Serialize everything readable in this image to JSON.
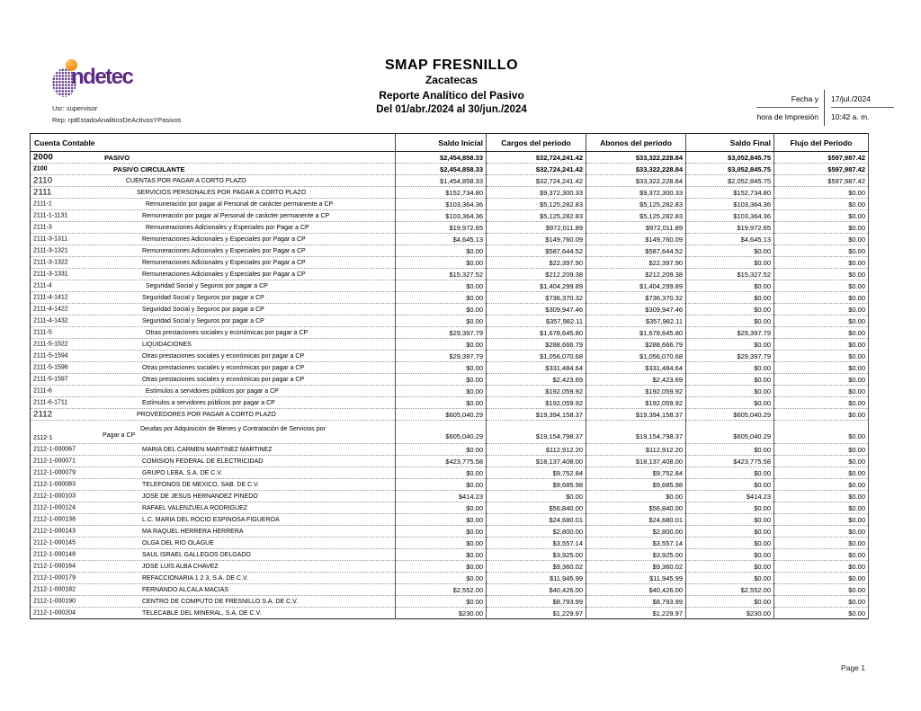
{
  "branding": {
    "logo_name": "indetec",
    "logo_text_visible": "ndetec",
    "purple": "#5B2C86",
    "orange": "#F59120"
  },
  "meta": {
    "usr_line": "Usr: supervisor",
    "rep_line": "Rep: rptEstadoAnaliticoDeActivosYPasivos"
  },
  "title": {
    "line1": "SMAP FRESNILLO",
    "line2": "Zacatecas",
    "line3": "Reporte Analítico del Pasivo",
    "line4": "Del 01/abr./2024 al 30/jun./2024"
  },
  "print_info": {
    "label_line1": "Fecha y",
    "label_line2": "hora de Impresión",
    "date": "17/jul./2024",
    "time": "10:42 a. m."
  },
  "table": {
    "columns": [
      "Cuenta Contable",
      "Saldo Inicial",
      "Cargos del periodo",
      "Abonos del periodo",
      "Saldo Final",
      "Flujo del Periodo"
    ],
    "rows": [
      {
        "code": "2000",
        "name": "PASIVO",
        "level": 1,
        "big": true,
        "bold": true,
        "values": [
          "$2,454,858.33",
          "$32,724,241.42",
          "$33,322,228.84",
          "$3,052,845.75",
          "$597,987.42"
        ]
      },
      {
        "code": "2100",
        "name": "PASIVO CIRCULANTE",
        "level": 2,
        "bold": true,
        "values": [
          "$2,454,858.33",
          "$32,724,241.42",
          "$33,322,228.84",
          "$3,052,845.75",
          "$597,987.42"
        ]
      },
      {
        "code": "2110",
        "name": "CUENTAS POR PAGAR A CORTO PLAZO",
        "level": 3,
        "big": true,
        "values": [
          "$1,454,858.33",
          "$32,724,241.42",
          "$33,322,228.84",
          "$2,052,845.75",
          "$597,987.42"
        ]
      },
      {
        "code": "2111",
        "name": "SERVICIOS PERSONALES POR PAGAR A CORTO PLAZO",
        "level": 4,
        "big": true,
        "values": [
          "$152,734.80",
          "$9,372,300.33",
          "$9,372,300.33",
          "$152,734.80",
          "$0.00"
        ]
      },
      {
        "code": "2111-1",
        "name": "Remuneración por pagar al Personal de carácter permanente a CP",
        "level": 5,
        "values": [
          "$103,364.36",
          "$5,125,282.83",
          "$5,125,282.83",
          "$103,364.36",
          "$0.00"
        ]
      },
      {
        "code": "2111-1-1131",
        "name": "Remuneración por pagar al Personal de carácter permanente a CP",
        "level": 6,
        "values": [
          "$103,364.36",
          "$5,125,282.83",
          "$5,125,282.83",
          "$103,364.36",
          "$0.00"
        ]
      },
      {
        "code": "2111-3",
        "name": "Remuneraciones Adicionales y Especiales por Pagar a CP",
        "level": 5,
        "values": [
          "$19,972.65",
          "$972,011.89",
          "$972,011.89",
          "$19,972.65",
          "$0.00"
        ]
      },
      {
        "code": "2111-3-1311",
        "name": "Remuneraciones Adicionales y Especiales por Pagar a CP",
        "level": 6,
        "values": [
          "$4,645.13",
          "$149,760.09",
          "$149,760.09",
          "$4,645.13",
          "$0.00"
        ]
      },
      {
        "code": "2111-3-1321",
        "name": "Remuneraciones Adicionales y Especiales por Pagar a CP",
        "level": 6,
        "values": [
          "$0.00",
          "$587,644.52",
          "$587,644.52",
          "$0.00",
          "$0.00"
        ]
      },
      {
        "code": "2111-3-1322",
        "name": "Remuneraciones Adicionales y Especiales por Pagar a CP",
        "level": 6,
        "values": [
          "$0.00",
          "$22,397.90",
          "$22,397.90",
          "$0.00",
          "$0.00"
        ]
      },
      {
        "code": "2111-3-1331",
        "name": "Remuneraciones Adicionales y Especiales por Pagar a CP",
        "level": 6,
        "values": [
          "$15,327.52",
          "$212,209.38",
          "$212,209.38",
          "$15,327.52",
          "$0.00"
        ]
      },
      {
        "code": "2111-4",
        "name": "Seguridad Social y Seguros por pagar a CP",
        "level": 5,
        "values": [
          "$0.00",
          "$1,404,299.89",
          "$1,404,299.89",
          "$0.00",
          "$0.00"
        ]
      },
      {
        "code": "2111-4-1412",
        "name": "Seguridad Social y Seguros por pagar a CP",
        "level": 6,
        "values": [
          "$0.00",
          "$736,370.32",
          "$736,370.32",
          "$0.00",
          "$0.00"
        ]
      },
      {
        "code": "2111-4-1422",
        "name": "Seguridad Social y Seguros por pagar a CP",
        "level": 6,
        "values": [
          "$0.00",
          "$309,947.46",
          "$309,947.46",
          "$0.00",
          "$0.00"
        ]
      },
      {
        "code": "2111-4-1432",
        "name": "Seguridad Social y Seguros por pagar a CP",
        "level": 6,
        "values": [
          "$0.00",
          "$357,982.11",
          "$357,982.11",
          "$0.00",
          "$0.00"
        ]
      },
      {
        "code": "2111-5",
        "name": "Otras prestaciones sociales y económicas por pagar a CP",
        "level": 5,
        "values": [
          "$29,397.79",
          "$1,678,645.80",
          "$1,678,645.80",
          "$29,397.79",
          "$0.00"
        ]
      },
      {
        "code": "2111-5-1522",
        "name": "LIQUIDACIONES",
        "level": 6,
        "values": [
          "$0.00",
          "$288,666.79",
          "$288,666.79",
          "$0.00",
          "$0.00"
        ]
      },
      {
        "code": "2111-5-1594",
        "name": "Otras prestaciones sociales y económicas por pagar a CP",
        "level": 6,
        "values": [
          "$29,397.79",
          "$1,056,070.68",
          "$1,056,070.68",
          "$29,397.79",
          "$0.00"
        ]
      },
      {
        "code": "2111-5-1596",
        "name": "Otras prestaciones sociales y económicas por pagar a CP",
        "level": 6,
        "values": [
          "$0.00",
          "$331,484.64",
          "$331,484.64",
          "$0.00",
          "$0.00"
        ]
      },
      {
        "code": "2111-5-1597",
        "name": "Otras prestaciones sociales y económicas por pagar a CP",
        "level": 6,
        "values": [
          "$0.00",
          "$2,423.69",
          "$2,423.69",
          "$0.00",
          "$0.00"
        ]
      },
      {
        "code": "2111-6",
        "name": "Estímulos a servidores públicos por pagar a CP",
        "level": 5,
        "values": [
          "$0.00",
          "$192,059.92",
          "$192,059.92",
          "$0.00",
          "$0.00"
        ]
      },
      {
        "code": "2111-6-1711",
        "name": "Estímulos a servidores públicos por pagar a CP",
        "level": 6,
        "values": [
          "$0.00",
          "$192,059.92",
          "$192,059.92",
          "$0.00",
          "$0.00"
        ]
      },
      {
        "code": "2112",
        "name": "PROVEEDORES POR PAGAR A CORTO PLAZO",
        "level": 4,
        "big": true,
        "values": [
          "$605,040.29",
          "$19,394,158.37",
          "$19,394,158.37",
          "$605,040.29",
          "$0.00"
        ]
      },
      {
        "code": "2112-1",
        "two_line": true,
        "name_line1": "Deudas por Adquisición de Bienes y Contratación de Servicios por",
        "name_line2": "Pagar a CP",
        "values": [
          "$605,040.29",
          "$19,154,798.37",
          "$19,154,798.37",
          "$605,040.29",
          "$0.00"
        ]
      },
      {
        "code": "2112-1-000067",
        "name": "MARIA DEL CARMEN MARTINEZ MARTINEZ",
        "level": 6,
        "values": [
          "$0.00",
          "$112,912.20",
          "$112,912.20",
          "$0.00",
          "$0.00"
        ]
      },
      {
        "code": "2112-1-000071",
        "name": "COMISION FEDERAL DE ELECTRICIDAD",
        "level": 6,
        "values": [
          "$423,775.58",
          "$18,137,408.00",
          "$18,137,408.00",
          "$423,775.58",
          "$0.00"
        ]
      },
      {
        "code": "2112-1-000079",
        "name": "GRUPO LEBA, S.A. DE C.V.",
        "level": 6,
        "values": [
          "$0.00",
          "$9,752.84",
          "$9,752.84",
          "$0.00",
          "$0.00"
        ]
      },
      {
        "code": "2112-1-000083",
        "name": "TELEFONOS DE MEXICO, SAB. DE C.V.",
        "level": 6,
        "values": [
          "$0.00",
          "$9,685.98",
          "$9,685.98",
          "$0.00",
          "$0.00"
        ]
      },
      {
        "code": "2112-1-000103",
        "name": "JOSE DE JESUS HERNANDEZ PINEDO",
        "level": 6,
        "values": [
          "$414.23",
          "$0.00",
          "$0.00",
          "$414.23",
          "$0.00"
        ]
      },
      {
        "code": "2112-1-000124",
        "name": "RAFAEL VALENZUELA RODRIGUEZ",
        "level": 6,
        "values": [
          "$0.00",
          "$56,840.00",
          "$56,840.00",
          "$0.00",
          "$0.00"
        ]
      },
      {
        "code": "2112-1-000138",
        "name": "L.C. MARIA DEL ROCIO ESPINOSA FIGUEROA",
        "level": 6,
        "values": [
          "$0.00",
          "$24,680.01",
          "$24,680.01",
          "$0.00",
          "$0.00"
        ]
      },
      {
        "code": "2112-1-000143",
        "name": "MA RAQUEL HERRERA HERRERA",
        "level": 6,
        "values": [
          "$0.00",
          "$2,800.00",
          "$2,800.00",
          "$0.00",
          "$0.00"
        ]
      },
      {
        "code": "2112-1-000145",
        "name": "OLGA DEL RIO OLAGUE",
        "level": 6,
        "values": [
          "$0.00",
          "$3,557.14",
          "$3,557.14",
          "$0.00",
          "$0.00"
        ]
      },
      {
        "code": "2112-1-000148",
        "name": "SAUL ISRAEL GALLEGOS DELGADO",
        "level": 6,
        "values": [
          "$0.00",
          "$3,925.00",
          "$3,925.00",
          "$0.00",
          "$0.00"
        ]
      },
      {
        "code": "2112-1-000164",
        "name": "JOSE LUIS ALBA CHAVEZ",
        "level": 6,
        "values": [
          "$0.00",
          "$9,360.02",
          "$9,360.02",
          "$0.00",
          "$0.00"
        ]
      },
      {
        "code": "2112-1-000179",
        "name": "REFACCIONARIA 1 2 3, S.A. DE C.V.",
        "level": 6,
        "values": [
          "$0.00",
          "$11,945.99",
          "$11,945.99",
          "$0.00",
          "$0.00"
        ]
      },
      {
        "code": "2112-1-000182",
        "name": "FERNANDO ALCALA MACIAS",
        "level": 6,
        "values": [
          "$2,552.00",
          "$40,426.00",
          "$40,426.00",
          "$2,552.00",
          "$0.00"
        ]
      },
      {
        "code": "2112-1-000190",
        "name": "CENTRO DE COMPUTO DE FRESNILLO S.A. DE C.V.",
        "level": 6,
        "values": [
          "$0.00",
          "$8,793.99",
          "$8,793.99",
          "$0.00",
          "$0.00"
        ]
      },
      {
        "code": "2112-1-000204",
        "name": "TELECABLE DEL MINERAL, S.A. DE C.V.",
        "level": 6,
        "values": [
          "$230.00",
          "$1,229.97",
          "$1,229.97",
          "$230.00",
          "$0.00"
        ]
      }
    ]
  },
  "footer": {
    "page_label": "Page 1"
  }
}
